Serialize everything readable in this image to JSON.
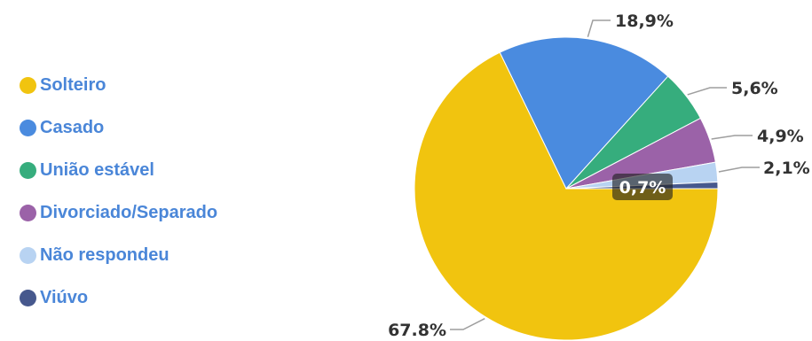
{
  "chart_data": {
    "type": "pie",
    "legend_position": "left",
    "slices": [
      {
        "label": "Solteiro",
        "value": 67.8,
        "display": "67.8%",
        "color": "#f1c40f"
      },
      {
        "label": "Casado",
        "value": 18.9,
        "display": "18,9%",
        "color": "#4a8bdf"
      },
      {
        "label": "União estável",
        "value": 5.6,
        "display": "5,6%",
        "color": "#36ad7d"
      },
      {
        "label": "Divorciado/Separado",
        "value": 4.9,
        "display": "4,9%",
        "color": "#9b62a8"
      },
      {
        "label": "Não respondeu",
        "value": 2.1,
        "display": "2,1%",
        "color": "#b8d3f2"
      },
      {
        "label": "Viúvo",
        "value": 0.7,
        "display": "0,7%",
        "color": "#46588d"
      }
    ]
  }
}
